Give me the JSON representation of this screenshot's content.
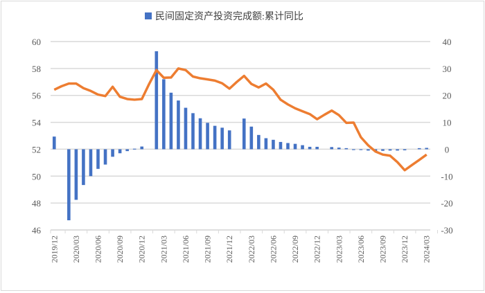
{
  "chart_data": {
    "type": "bar+line",
    "legend": [
      {
        "name": "民间固定资产投资完成额:累计同比",
        "color": "#4472c4",
        "marker": "square"
      }
    ],
    "legend_placement": "top",
    "categories": [
      "2019/12",
      "2020/01",
      "2020/02",
      "2020/03",
      "2020/04",
      "2020/05",
      "2020/06",
      "2020/07",
      "2020/08",
      "2020/09",
      "2020/10",
      "2020/11",
      "2020/12",
      "2021/01",
      "2021/02",
      "2021/03",
      "2021/04",
      "2021/05",
      "2021/06",
      "2021/07",
      "2021/08",
      "2021/09",
      "2021/10",
      "2021/11",
      "2021/12",
      "2022/01",
      "2022/02",
      "2022/03",
      "2022/04",
      "2022/05",
      "2022/06",
      "2022/07",
      "2022/08",
      "2022/09",
      "2022/10",
      "2022/11",
      "2022/12",
      "2023/01",
      "2023/02",
      "2023/03",
      "2023/04",
      "2023/05",
      "2023/06",
      "2023/07",
      "2023/08",
      "2023/09",
      "2023/10",
      "2023/11",
      "2023/12",
      "2024/01",
      "2024/02",
      "2024/03"
    ],
    "tick_labels": [
      "2019/12",
      "2020/03",
      "2020/06",
      "2020/09",
      "2020/12",
      "2021/03",
      "2021/06",
      "2021/09",
      "2021/12",
      "2022/03",
      "2022/06",
      "2022/09",
      "2022/12",
      "2023/03",
      "2023/06",
      "2023/09",
      "2023/12",
      "2024/03"
    ],
    "series": [
      {
        "name": "民间固定资产投资完成额:累计同比",
        "type": "bar",
        "axis": "right",
        "color": "#4472c4",
        "values": [
          4.7,
          null,
          -26.4,
          -18.8,
          -13.3,
          -10.0,
          -7.3,
          -5.7,
          -2.8,
          -1.5,
          -0.7,
          0.2,
          1.0,
          null,
          36.4,
          26.0,
          21.0,
          18.1,
          15.4,
          13.4,
          11.5,
          9.8,
          8.7,
          8.0,
          7.0,
          null,
          11.4,
          8.4,
          5.3,
          4.1,
          3.5,
          2.7,
          2.3,
          2.0,
          1.5,
          0.9,
          0.9,
          null,
          0.8,
          0.6,
          0.4,
          -0.1,
          -0.2,
          -0.5,
          -0.7,
          -0.6,
          -0.5,
          -0.5,
          -0.4,
          null,
          0.4,
          0.5
        ]
      },
      {
        "type": "line",
        "axis": "left",
        "color": "#ed7d31",
        "values": [
          56.42,
          56.68,
          56.88,
          56.88,
          56.54,
          56.33,
          56.06,
          55.95,
          56.64,
          55.9,
          55.73,
          55.68,
          55.73,
          56.85,
          57.88,
          57.31,
          57.33,
          58.0,
          57.88,
          57.4,
          57.27,
          57.19,
          57.1,
          56.9,
          56.5,
          57.0,
          57.45,
          56.85,
          56.59,
          56.88,
          56.42,
          55.68,
          55.33,
          55.04,
          54.82,
          54.61,
          54.23,
          54.56,
          54.87,
          54.53,
          53.96,
          53.98,
          52.89,
          52.29,
          51.83,
          51.6,
          51.52,
          51.04,
          50.44,
          50.83,
          51.21,
          51.6
        ]
      }
    ],
    "left_axis": {
      "range": [
        46,
        60
      ],
      "ticks": [
        46,
        48,
        50,
        52,
        54,
        56,
        58,
        60
      ]
    },
    "right_axis": {
      "range": [
        -30,
        40
      ],
      "ticks": [
        -30,
        -20,
        -10,
        0,
        10,
        20,
        30,
        40
      ]
    },
    "grid": true
  }
}
